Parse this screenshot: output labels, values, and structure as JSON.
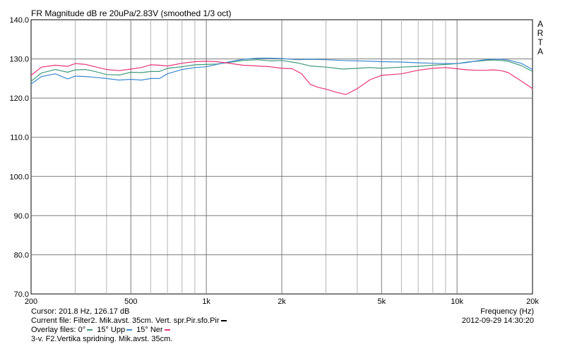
{
  "chart_data": {
    "type": "line",
    "title": "FR Magnitude dB re 20uPa/2.83V (smoothed 1/3 oct)",
    "side_label": [
      "A",
      "R",
      "T",
      "A"
    ],
    "xlabel": "Frequency (Hz)",
    "xscale": "log",
    "xlim": [
      200,
      20000
    ],
    "ylim": [
      70,
      140
    ],
    "x_ticks": [
      {
        "value": 200,
        "label": "200"
      },
      {
        "value": 500,
        "label": "500"
      },
      {
        "value": 1000,
        "label": "1k"
      },
      {
        "value": 2000,
        "label": "2k"
      },
      {
        "value": 5000,
        "label": "5k"
      },
      {
        "value": 10000,
        "label": "10k"
      },
      {
        "value": 20000,
        "label": "20k"
      }
    ],
    "x_minor_gridlines": [
      300,
      400,
      600,
      700,
      800,
      900,
      3000,
      4000,
      6000,
      7000,
      8000,
      9000
    ],
    "y_ticks": [
      {
        "value": 70,
        "label": "70.0"
      },
      {
        "value": 80,
        "label": "80.0"
      },
      {
        "value": 90,
        "label": "90.0"
      },
      {
        "value": 100,
        "label": "100.0"
      },
      {
        "value": 110,
        "label": "110.0"
      },
      {
        "value": 120,
        "label": "120.0"
      },
      {
        "value": 130,
        "label": "130.0"
      },
      {
        "value": 140,
        "label": "140.0"
      }
    ],
    "grid": true,
    "series": [
      {
        "name": "0°",
        "color": "#3f9a7a",
        "x": [
          200,
          220,
          250,
          280,
          300,
          330,
          360,
          400,
          450,
          500,
          550,
          600,
          650,
          700,
          800,
          900,
          1000,
          1100,
          1200,
          1400,
          1600,
          1800,
          2000,
          2300,
          2600,
          3000,
          3500,
          4000,
          4500,
          5000,
          6000,
          7000,
          8000,
          9000,
          10000,
          11000,
          12000,
          13000,
          14000,
          15000,
          16000,
          18000,
          20000
        ],
        "y": [
          124.3,
          126.4,
          127.3,
          126.6,
          127.2,
          127.3,
          126.8,
          126.0,
          125.9,
          126.6,
          126.5,
          126.8,
          126.8,
          127.6,
          128.0,
          128.5,
          128.6,
          128.7,
          129.0,
          129.6,
          129.8,
          129.5,
          129.6,
          129.0,
          128.2,
          127.9,
          127.4,
          127.6,
          127.8,
          127.6,
          127.9,
          128.1,
          128.4,
          128.6,
          128.8,
          129.2,
          129.4,
          129.6,
          129.7,
          129.6,
          129.4,
          128.3,
          126.8
        ]
      },
      {
        "name": "15° Upp",
        "color": "#3b8ad0",
        "x": [
          200,
          220,
          250,
          280,
          300,
          330,
          360,
          400,
          450,
          500,
          550,
          600,
          650,
          700,
          800,
          900,
          1000,
          1100,
          1200,
          1400,
          1600,
          1800,
          2000,
          2300,
          2600,
          3000,
          3500,
          4000,
          4500,
          5000,
          6000,
          7000,
          8000,
          9000,
          10000,
          11000,
          12000,
          13000,
          14000,
          15000,
          16000,
          18000,
          20000
        ],
        "y": [
          123.6,
          125.5,
          126.2,
          124.9,
          125.6,
          125.5,
          125.3,
          125.0,
          124.6,
          124.8,
          124.6,
          125.0,
          125.0,
          126.2,
          127.3,
          127.8,
          128.0,
          128.6,
          129.1,
          129.9,
          130.2,
          130.2,
          130.1,
          129.8,
          129.9,
          129.8,
          129.6,
          129.5,
          129.4,
          129.3,
          129.2,
          129.0,
          128.9,
          128.8,
          128.8,
          129.1,
          129.5,
          129.8,
          129.9,
          129.9,
          129.7,
          128.9,
          127.3
        ]
      },
      {
        "name": "15° Ner",
        "color": "#e8357a",
        "x": [
          200,
          220,
          250,
          280,
          300,
          330,
          360,
          400,
          450,
          500,
          550,
          600,
          650,
          700,
          800,
          900,
          1000,
          1100,
          1200,
          1400,
          1600,
          1800,
          2000,
          2200,
          2400,
          2600,
          2800,
          3000,
          3300,
          3600,
          4000,
          4500,
          5000,
          6000,
          7000,
          8000,
          9000,
          10000,
          11000,
          12000,
          13000,
          14000,
          15000,
          16000,
          18000,
          20000
        ],
        "y": [
          125.8,
          127.9,
          128.4,
          128.1,
          128.8,
          128.6,
          128.0,
          127.3,
          127.0,
          127.4,
          127.8,
          128.5,
          128.4,
          128.2,
          128.9,
          129.3,
          129.4,
          129.3,
          129.0,
          128.4,
          128.2,
          128.0,
          127.6,
          127.5,
          126.2,
          123.5,
          122.7,
          122.3,
          121.5,
          120.9,
          122.4,
          124.7,
          125.8,
          126.2,
          127.1,
          127.6,
          127.8,
          127.5,
          127.2,
          127.1,
          127.1,
          127.2,
          127.0,
          126.5,
          124.4,
          122.4
        ]
      }
    ]
  },
  "footer": {
    "cursor": "Cursor: 201.8 Hz, 126.17 dB",
    "current_file_text": "Current file: Filter2. Mik.avst. 35cm. Vert. spr.Pir.sfo.Pir",
    "current_file_color": "#000000",
    "overlay_prefix": "Overlay files:",
    "overlays": [
      {
        "label": "0°",
        "color": "#3f9a7a"
      },
      {
        "label": "15° Upp",
        "color": "#3b8ad0"
      },
      {
        "label": "15° Ner",
        "color": "#e8357a"
      }
    ],
    "description": "3-v. F2.Vertika spridning. Mik.avst. 35cm.",
    "frequency_axis_label": "Frequency (Hz)",
    "timestamp": "2012-09-29  14:30:20"
  }
}
